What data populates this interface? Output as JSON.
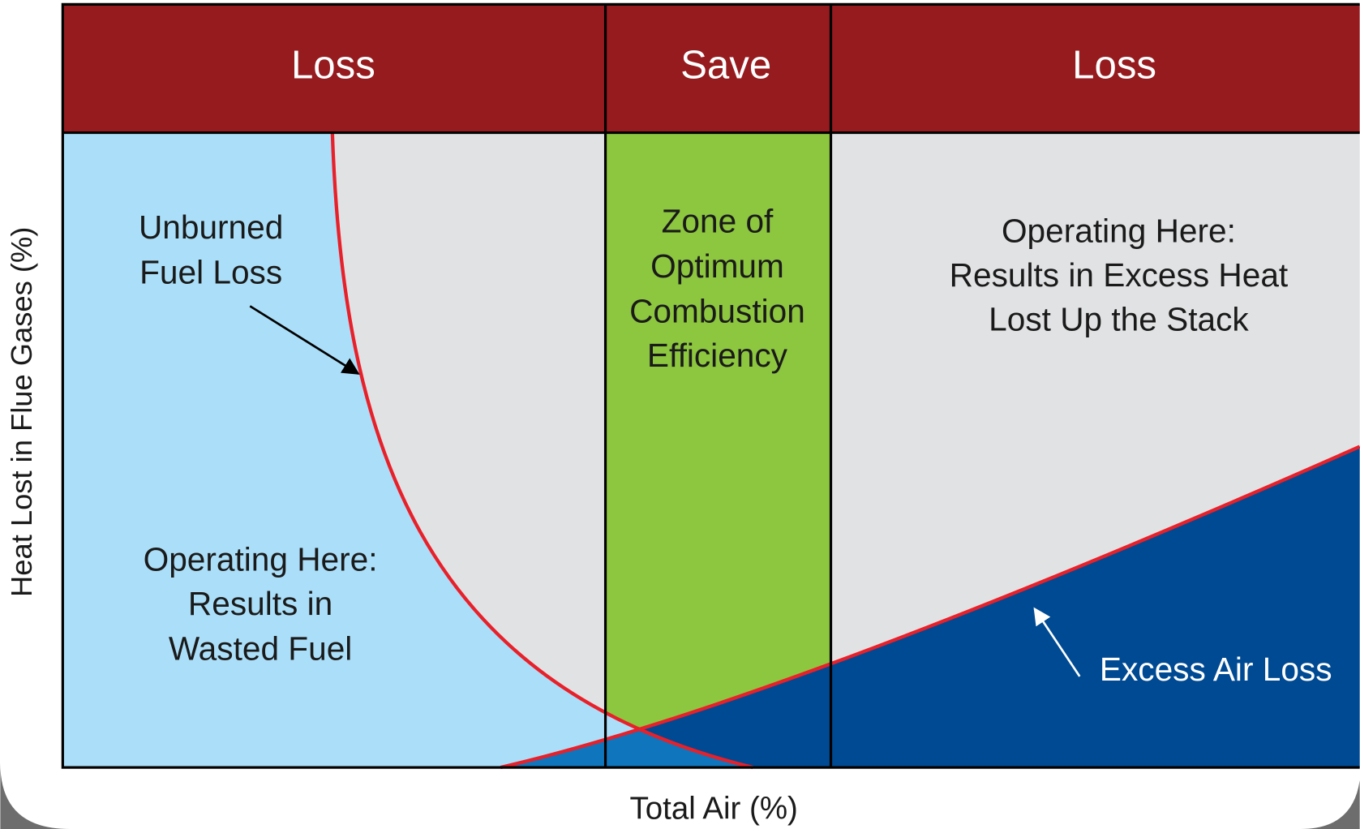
{
  "header": {
    "cells": [
      "Loss",
      "Save",
      "Loss"
    ]
  },
  "labels": {
    "unburned_fuel_loss": [
      "Unburned",
      "Fuel Loss"
    ],
    "wasted_fuel": [
      "Operating Here:",
      "Results in",
      "Wasted Fuel"
    ],
    "optimum_zone": [
      "Zone of",
      "Optimum",
      "Combustion",
      "Efficiency"
    ],
    "excess_heat": [
      "Operating Here:",
      "Results in Excess Heat",
      "Lost Up the Stack"
    ],
    "excess_air_loss": "Excess Air Loss"
  },
  "axes": {
    "y_label": "Heat Lost in Flue Gases (%)",
    "x_label": "Total Air (%)"
  }
}
